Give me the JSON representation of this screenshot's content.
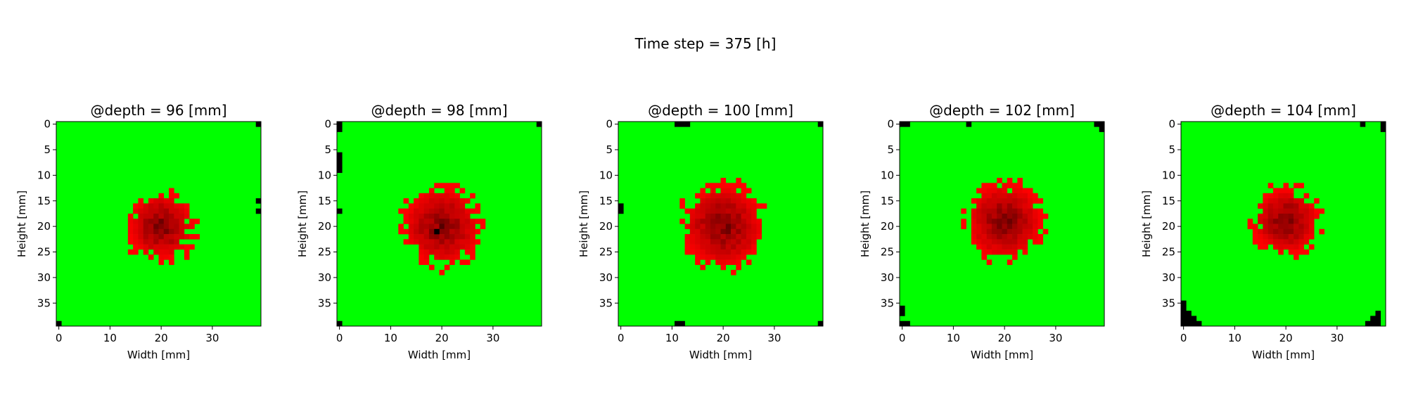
{
  "figure": {
    "suptitle": "Time step = 375 [h]"
  },
  "colors": {
    "background_cell": "#00ff00",
    "affected_cell": "#ff0000",
    "edge_cell": "#000000"
  },
  "chart_data": [
    {
      "type": "heatmap",
      "title": "@depth = 96 [mm]",
      "xlabel": "Width [mm]",
      "ylabel": "Height [mm]",
      "xlim": [
        0,
        39
      ],
      "ylim": [
        39,
        0
      ],
      "xticks": [
        "0",
        "10",
        "20",
        "30"
      ],
      "yticks": [
        "0",
        "5",
        "10",
        "15",
        "20",
        "25",
        "30",
        "35"
      ],
      "grid_size": 40,
      "red_region": {
        "center": [
          20,
          20
        ],
        "radius": 6.5,
        "seed": 11
      },
      "black_cells": [
        [
          0,
          39
        ],
        [
          39,
          0
        ],
        [
          39,
          15
        ],
        [
          39,
          17
        ]
      ]
    },
    {
      "type": "heatmap",
      "title": "@depth = 98 [mm]",
      "xlabel": "Width [mm]",
      "ylabel": "Height [mm]",
      "xlim": [
        0,
        39
      ],
      "ylim": [
        39,
        0
      ],
      "xticks": [
        "0",
        "10",
        "20",
        "30"
      ],
      "yticks": [
        "0",
        "5",
        "10",
        "15",
        "20",
        "25",
        "30",
        "35"
      ],
      "grid_size": 40,
      "red_region": {
        "center": [
          20,
          20
        ],
        "radius": 7.5,
        "seed": 23
      },
      "black_cells": [
        [
          0,
          0
        ],
        [
          0,
          1
        ],
        [
          0,
          6
        ],
        [
          0,
          7
        ],
        [
          0,
          8
        ],
        [
          0,
          9
        ],
        [
          0,
          17
        ],
        [
          0,
          39
        ],
        [
          39,
          0
        ],
        [
          19,
          21
        ]
      ]
    },
    {
      "type": "heatmap",
      "title": "@depth = 100 [mm]",
      "xlabel": "Width [mm]",
      "ylabel": "Height [mm]",
      "xlim": [
        0,
        39
      ],
      "ylim": [
        39,
        0
      ],
      "xticks": [
        "0",
        "10",
        "20",
        "30"
      ],
      "yticks": [
        "0",
        "5",
        "10",
        "15",
        "20",
        "25",
        "30",
        "35"
      ],
      "grid_size": 40,
      "red_region": {
        "center": [
          20,
          20
        ],
        "radius": 8,
        "seed": 37
      },
      "black_cells": [
        [
          11,
          0
        ],
        [
          12,
          0
        ],
        [
          13,
          0
        ],
        [
          0,
          16
        ],
        [
          0,
          17
        ],
        [
          11,
          39
        ],
        [
          12,
          39
        ],
        [
          39,
          0
        ],
        [
          39,
          39
        ]
      ]
    },
    {
      "type": "heatmap",
      "title": "@depth = 102 [mm]",
      "xlabel": "Width [mm]",
      "ylabel": "Height [mm]",
      "xlim": [
        0,
        39
      ],
      "ylim": [
        39,
        0
      ],
      "xticks": [
        "0",
        "10",
        "20",
        "30"
      ],
      "yticks": [
        "0",
        "5",
        "10",
        "15",
        "20",
        "25",
        "30",
        "35"
      ],
      "grid_size": 40,
      "red_region": {
        "center": [
          20,
          19
        ],
        "radius": 7.5,
        "seed": 53
      },
      "black_cells": [
        [
          0,
          0
        ],
        [
          1,
          0
        ],
        [
          13,
          0
        ],
        [
          38,
          0
        ],
        [
          39,
          0
        ],
        [
          39,
          1
        ],
        [
          0,
          36
        ],
        [
          0,
          37
        ],
        [
          0,
          39
        ],
        [
          1,
          39
        ]
      ]
    },
    {
      "type": "heatmap",
      "title": "@depth = 104 [mm]",
      "xlabel": "Width [mm]",
      "ylabel": "Height [mm]",
      "xlim": [
        0,
        39
      ],
      "ylim": [
        39,
        0
      ],
      "xticks": [
        "0",
        "10",
        "20",
        "30"
      ],
      "yticks": [
        "0",
        "5",
        "10",
        "15",
        "20",
        "25",
        "30",
        "35"
      ],
      "grid_size": 40,
      "red_region": {
        "center": [
          20,
          19
        ],
        "radius": 6.5,
        "seed": 71
      },
      "black_cells": [
        [
          35,
          0
        ],
        [
          39,
          0
        ],
        [
          39,
          1
        ],
        [
          0,
          35
        ],
        [
          0,
          36
        ],
        [
          0,
          37
        ],
        [
          1,
          37
        ],
        [
          0,
          38
        ],
        [
          1,
          38
        ],
        [
          2,
          38
        ],
        [
          0,
          39
        ],
        [
          1,
          39
        ],
        [
          2,
          39
        ],
        [
          3,
          39
        ],
        [
          38,
          37
        ],
        [
          37,
          38
        ],
        [
          38,
          38
        ],
        [
          36,
          39
        ],
        [
          37,
          39
        ],
        [
          38,
          39
        ]
      ]
    }
  ]
}
